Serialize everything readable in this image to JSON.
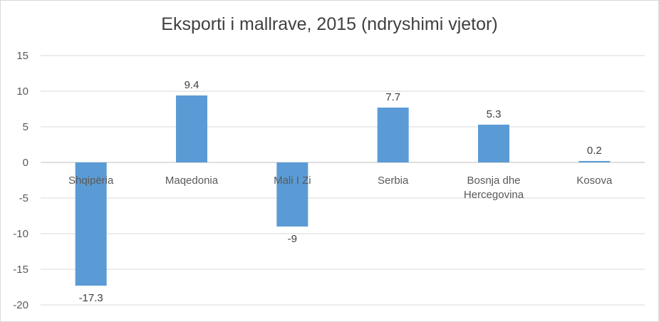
{
  "chart_data": {
    "type": "bar",
    "title": "Eksporti i mallrave, 2015 (ndryshimi vjetor)",
    "xlabel": "",
    "ylabel": "",
    "categories": [
      [
        "Shqipëria"
      ],
      [
        "Maqedonia"
      ],
      [
        "Mali I Zi"
      ],
      [
        "Serbia"
      ],
      [
        "Bosnja dhe",
        "Hercegovina"
      ],
      [
        "Kosova"
      ]
    ],
    "values": [
      -17.3,
      9.4,
      -9,
      7.7,
      5.3,
      0.2
    ],
    "value_labels": [
      "-17.3",
      "9.4",
      "-9",
      "7.7",
      "5.3",
      "0.2"
    ],
    "ylim": [
      -20,
      15
    ],
    "yticks": [
      15,
      10,
      5,
      0,
      -5,
      -10,
      -15,
      -20
    ],
    "grid": true,
    "legend": "none",
    "colors": {
      "bar": "#5b9bd5",
      "grid": "#d9d9d9",
      "axis": "#bfbfbf"
    }
  }
}
